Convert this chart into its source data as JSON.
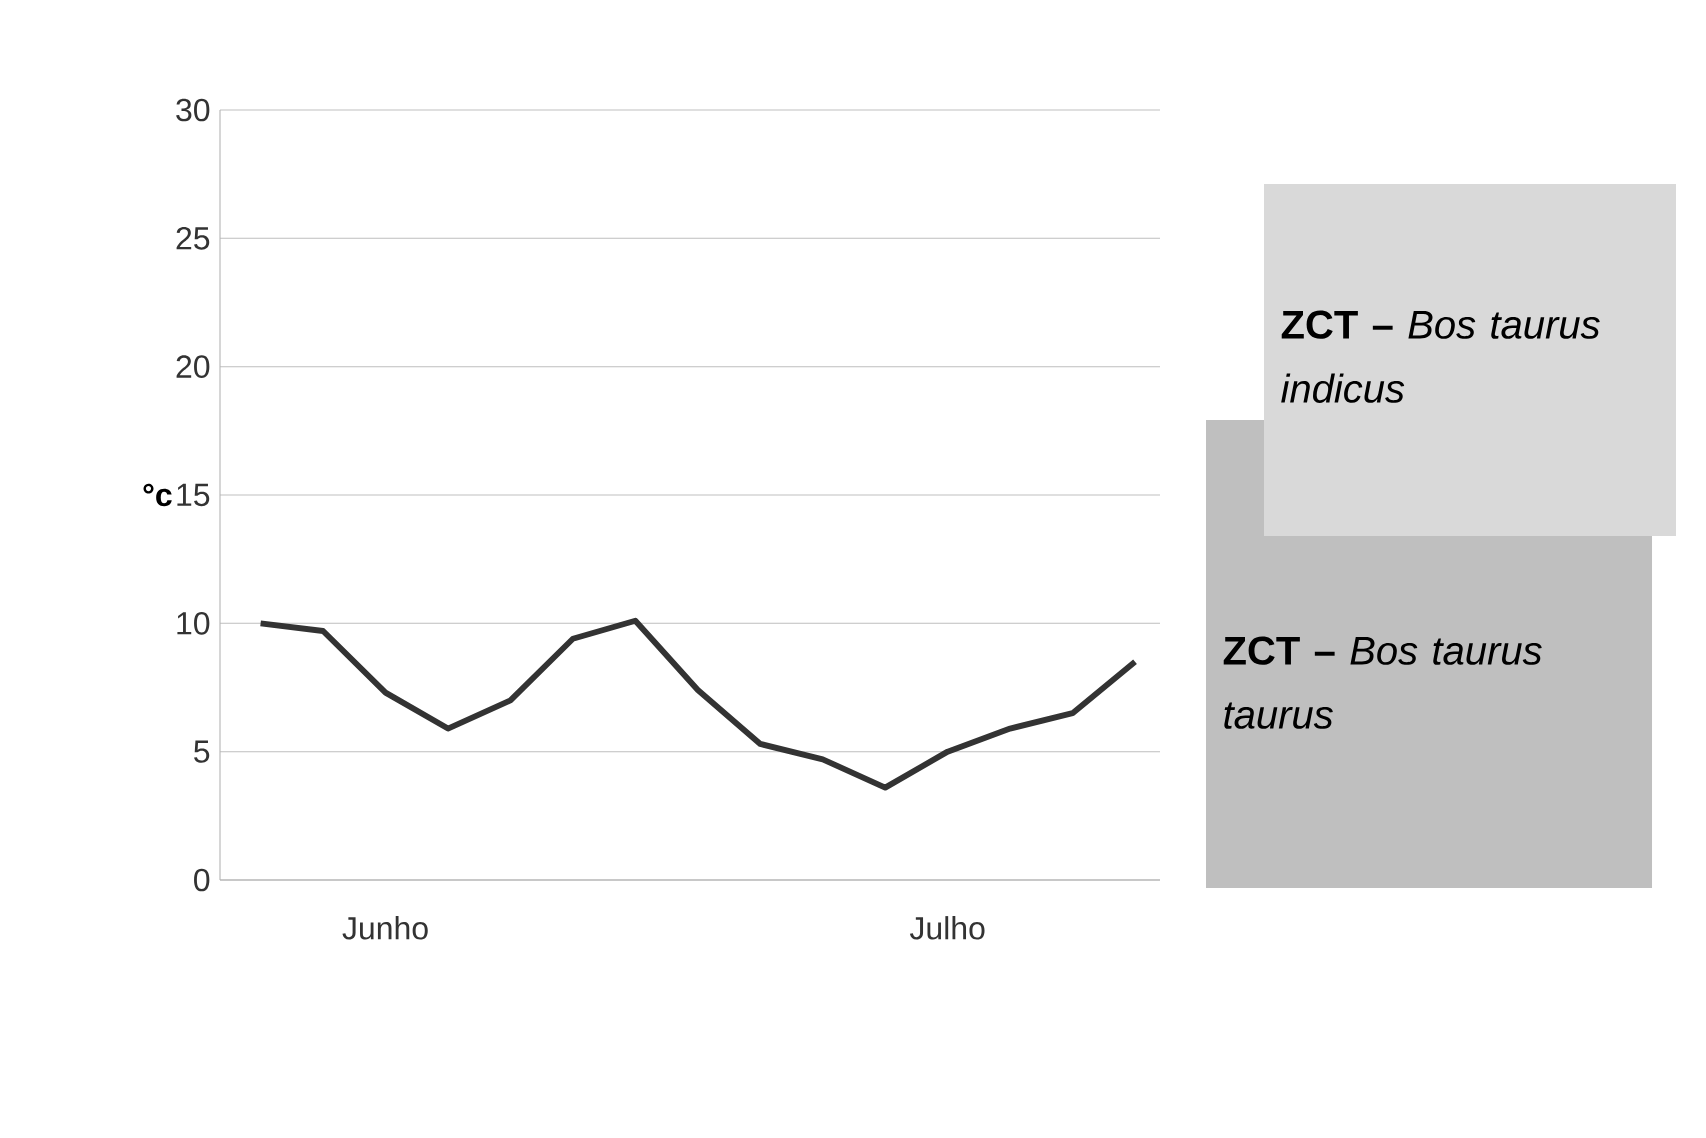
{
  "chart_data": {
    "type": "line",
    "ylabel": "°c",
    "categories": [
      null,
      null,
      "Junho",
      null,
      null,
      null,
      null,
      null,
      null,
      null,
      null,
      "Julho",
      null,
      null,
      null
    ],
    "values": [
      10.0,
      9.7,
      7.3,
      5.9,
      7.0,
      9.4,
      10.1,
      7.4,
      5.3,
      4.7,
      3.6,
      5.0,
      5.9,
      6.5,
      8.5
    ],
    "color": "#333333",
    "ylim": [
      0,
      30
    ],
    "yticks": [
      0,
      5,
      10,
      15,
      20,
      25,
      30
    ],
    "grid": "y",
    "marker": "none",
    "annotations": [
      "**ZCT –** *Bos taurus indicus*",
      "**ZCT –** *Bos taurus taurus*"
    ]
  }
}
